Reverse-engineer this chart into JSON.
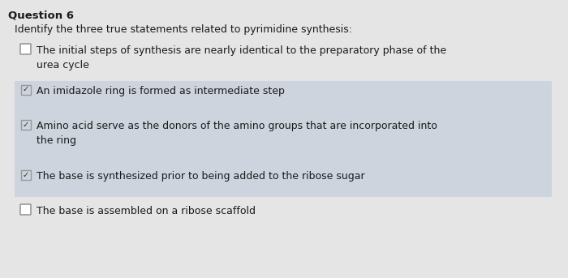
{
  "title": "Question 6",
  "subtitle": "Identify the three true statements related to pyrimidine synthesis:",
  "background_color": "#e5e5e5",
  "option_bg_checked": "#cdd4de",
  "options": [
    {
      "text": "The initial steps of synthesis are nearly identical to the preparatory phase of the\nurea cycle",
      "checked": false
    },
    {
      "text": "An imidazole ring is formed as intermediate step",
      "checked": true
    },
    {
      "text": "Amino acid serve as the donors of the amino groups that are incorporated into\nthe ring",
      "checked": true
    },
    {
      "text": "The base is synthesized prior to being added to the ribose sugar",
      "checked": true
    },
    {
      "text": "The base is assembled on a ribose scaffold",
      "checked": false
    }
  ],
  "title_fontsize": 9.5,
  "subtitle_fontsize": 9,
  "option_fontsize": 9,
  "text_color": "#1a1a1a",
  "check_color": "#2a2a2a",
  "border_color": "#999999",
  "fig_width": 7.0,
  "fig_height": 3.43,
  "dpi": 100
}
